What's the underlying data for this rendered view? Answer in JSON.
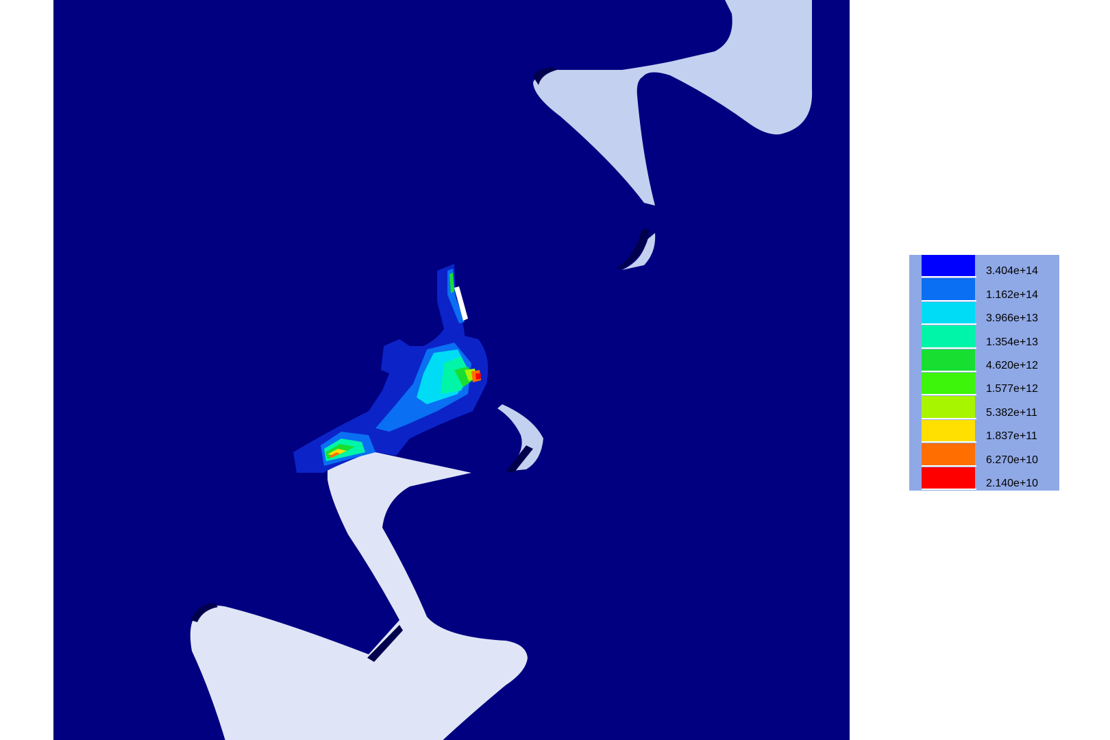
{
  "legend": {
    "entries": [
      {
        "label": "3.404e+14",
        "color": "#0000ff"
      },
      {
        "label": "1.162e+14",
        "color": "#0a6ff2"
      },
      {
        "label": "3.966e+13",
        "color": "#00dcf5"
      },
      {
        "label": "1.354e+13",
        "color": "#00f5a8"
      },
      {
        "label": "4.620e+12",
        "color": "#19de32"
      },
      {
        "label": "1.577e+12",
        "color": "#3df50a"
      },
      {
        "label": "5.382e+11",
        "color": "#a8f500"
      },
      {
        "label": "1.837e+11",
        "color": "#ffe000"
      },
      {
        "label": "6.270e+10",
        "color": "#ff6e00"
      },
      {
        "label": "2.140e+10",
        "color": "#ff0000"
      }
    ]
  },
  "colors": {
    "background_part": "#000080",
    "gear_light": "#dfe5f6",
    "gear_upper": "#c4d0ef",
    "contact_base": "#0c23c8",
    "legend_bg": "#8fa8e6"
  }
}
